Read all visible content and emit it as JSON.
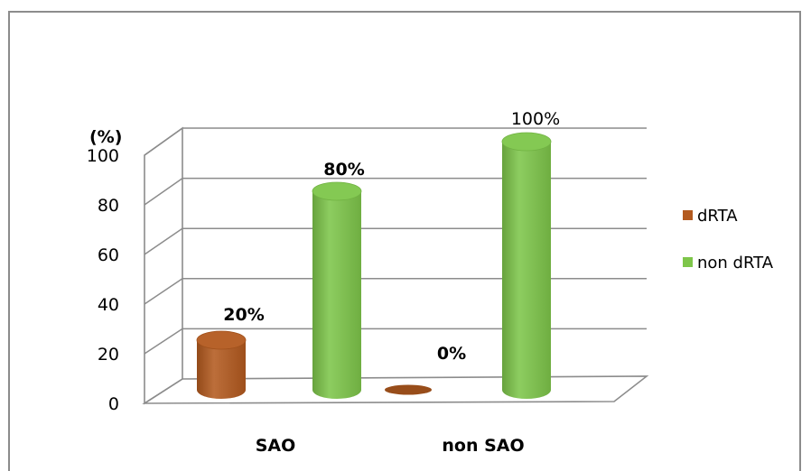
{
  "chart_data": {
    "type": "bar",
    "style": "3d-cylinder",
    "categories": [
      "SAO",
      "non SAO"
    ],
    "series": [
      {
        "name": "dRTA",
        "values": [
          20,
          0
        ],
        "labels": [
          "20%",
          "0%"
        ],
        "color": "#b35a1f"
      },
      {
        "name": "non dRTA",
        "values": [
          80,
          100
        ],
        "labels": [
          "80%",
          "100%"
        ],
        "color": "#7ec64a"
      }
    ],
    "ylabel": "(%)",
    "ylim": [
      0,
      100
    ],
    "yticks": [
      "0",
      "20",
      "40",
      "60",
      "80",
      "100"
    ],
    "grid": true,
    "legend_position": "right"
  }
}
